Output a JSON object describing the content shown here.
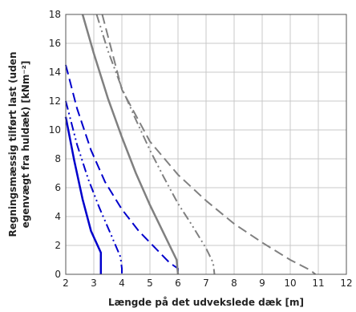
{
  "chart_data": {
    "type": "line",
    "xlabel": "Længde på det udvekslede dæk [m]",
    "ylabel_lines": [
      "Regningsmæssig tilført last (uden",
      "egenvægt fra huldæk) [kNm⁻²]"
    ],
    "xlim": [
      2,
      12
    ],
    "ylim": [
      0,
      18
    ],
    "xticks": [
      2,
      3,
      4,
      5,
      6,
      7,
      8,
      9,
      10,
      11,
      12
    ],
    "yticks": [
      0,
      2,
      4,
      6,
      8,
      10,
      12,
      14,
      16,
      18
    ],
    "grid": true,
    "legend": "none",
    "colors": {
      "blue": "#0000cc",
      "gray": "#808080",
      "grid": "#c8c8c8"
    },
    "series": [
      {
        "color": "#0000cc",
        "dash": "solid",
        "width": 2.5,
        "x": [
          2.0,
          2.3,
          2.6,
          2.9,
          3.25,
          3.25,
          3.25
        ],
        "y": [
          10.9,
          7.9,
          5.2,
          3.0,
          1.5,
          0.5,
          0.0
        ]
      },
      {
        "color": "#0000cc",
        "dash": "dashdotdot",
        "width": 2.0,
        "x": [
          2.0,
          2.4,
          2.8,
          3.2,
          3.6,
          3.95,
          4.0,
          4.0
        ],
        "y": [
          12.0,
          9.0,
          6.6,
          4.6,
          2.8,
          1.2,
          0.4,
          0.0
        ]
      },
      {
        "color": "#0000cc",
        "dash": "dashed",
        "width": 2.0,
        "x": [
          2.0,
          2.4,
          2.9,
          3.4,
          4.0,
          4.6,
          5.2,
          5.7,
          6.0,
          6.0
        ],
        "y": [
          14.5,
          11.5,
          8.6,
          6.4,
          4.5,
          3.0,
          1.8,
          0.8,
          0.4,
          0.0
        ]
      },
      {
        "color": "#808080",
        "dash": "solid",
        "width": 2.5,
        "x": [
          2.6,
          3.0,
          3.5,
          4.0,
          4.5,
          5.0,
          5.5,
          5.95,
          6.0
        ],
        "y": [
          18.0,
          15.3,
          12.2,
          9.5,
          7.0,
          4.8,
          2.8,
          1.0,
          0.0
        ]
      },
      {
        "color": "#808080",
        "dash": "dashdotdot",
        "width": 2.0,
        "x": [
          3.1,
          3.5,
          4.0,
          4.5,
          5.0,
          5.5,
          6.0,
          6.5,
          7.0,
          7.25,
          7.3
        ],
        "y": [
          18.0,
          15.5,
          12.9,
          10.7,
          8.6,
          6.7,
          4.9,
          3.4,
          1.8,
          0.8,
          0.0
        ]
      },
      {
        "color": "#808080",
        "dash": "dashed",
        "width": 2.0,
        "x": [
          3.3,
          4.0,
          5.0,
          6.0,
          7.0,
          8.0,
          9.0,
          10.0,
          10.7,
          10.9
        ],
        "y": [
          18.0,
          12.8,
          9.2,
          6.9,
          5.1,
          3.5,
          2.2,
          1.0,
          0.3,
          0.0
        ]
      }
    ]
  }
}
